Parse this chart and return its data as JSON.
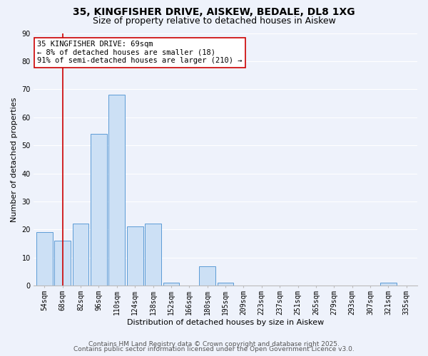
{
  "title": "35, KINGFISHER DRIVE, AISKEW, BEDALE, DL8 1XG",
  "subtitle": "Size of property relative to detached houses in Aiskew",
  "xlabel": "Distribution of detached houses by size in Aiskew",
  "ylabel": "Number of detached properties",
  "bar_labels": [
    "54sqm",
    "68sqm",
    "82sqm",
    "96sqm",
    "110sqm",
    "124sqm",
    "138sqm",
    "152sqm",
    "166sqm",
    "180sqm",
    "195sqm",
    "209sqm",
    "223sqm",
    "237sqm",
    "251sqm",
    "265sqm",
    "279sqm",
    "293sqm",
    "307sqm",
    "321sqm",
    "335sqm"
  ],
  "bar_values": [
    19,
    16,
    22,
    54,
    68,
    21,
    22,
    1,
    0,
    7,
    1,
    0,
    0,
    0,
    0,
    0,
    0,
    0,
    0,
    1,
    0
  ],
  "bar_color": "#cce0f5",
  "bar_edge_color": "#5b9bd5",
  "vline_x_idx": 1,
  "vline_color": "#cc0000",
  "annotation_line1": "35 KINGFISHER DRIVE: 69sqm",
  "annotation_line2": "← 8% of detached houses are smaller (18)",
  "annotation_line3": "91% of semi-detached houses are larger (210) →",
  "annotation_box_color": "#ffffff",
  "annotation_box_edge_color": "#cc0000",
  "ylim": [
    0,
    90
  ],
  "yticks": [
    0,
    10,
    20,
    30,
    40,
    50,
    60,
    70,
    80,
    90
  ],
  "footer1": "Contains HM Land Registry data © Crown copyright and database right 2025.",
  "footer2": "Contains public sector information licensed under the Open Government Licence v3.0.",
  "bg_color": "#eef2fb",
  "grid_color": "#ffffff",
  "title_fontsize": 10,
  "subtitle_fontsize": 9,
  "axis_label_fontsize": 8,
  "tick_fontsize": 7,
  "annotation_fontsize": 7.5,
  "footer_fontsize": 6.5
}
